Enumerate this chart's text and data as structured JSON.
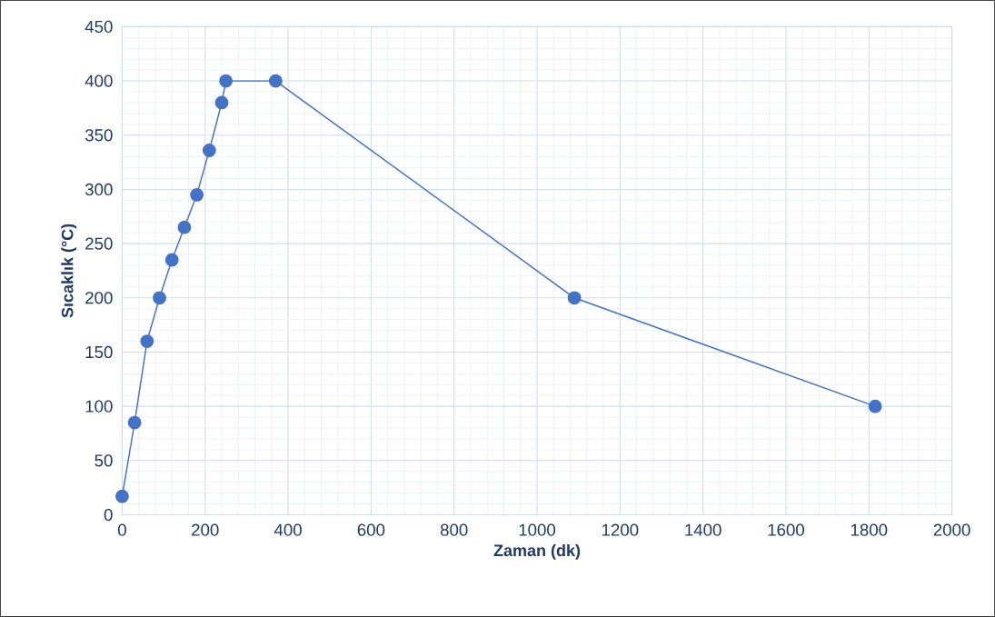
{
  "chart_data": {
    "type": "line",
    "xlabel": "Zaman (dk)",
    "ylabel": "Sıcaklık (°C)",
    "x": [
      0,
      30,
      60,
      90,
      120,
      150,
      180,
      210,
      240,
      250,
      370,
      1090,
      1815
    ],
    "series": [
      {
        "color": "#4472c4",
        "values": [
          17,
          85,
          160,
          200,
          235,
          265,
          295,
          336,
          380,
          400,
          400,
          200,
          100
        ]
      }
    ],
    "xlim": [
      0,
      2000
    ],
    "ylim": [
      0,
      450
    ],
    "xticks": [
      0,
      200,
      400,
      600,
      800,
      1000,
      1200,
      1400,
      1600,
      1800,
      2000
    ],
    "yticks": [
      0,
      50,
      100,
      150,
      200,
      250,
      300,
      350,
      400,
      450
    ],
    "grid": true,
    "marker": "circle",
    "line_style": "solid"
  }
}
